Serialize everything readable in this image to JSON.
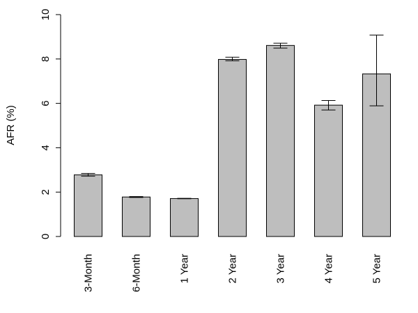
{
  "chart_data": {
    "type": "bar",
    "title": "",
    "xlabel": "",
    "ylabel": "AFR (%)",
    "ylim": [
      0,
      10
    ],
    "yticks": [
      "0",
      "2",
      "4",
      "6",
      "8",
      "10"
    ],
    "categories": [
      "3-Month",
      "6-Month",
      "1 Year",
      "2 Year",
      "3 Year",
      "4 Year",
      "5 Year"
    ],
    "values": [
      2.78,
      1.78,
      1.71,
      7.98,
      8.61,
      5.92,
      7.33
    ],
    "error_low": [
      2.72,
      1.76,
      1.7,
      7.92,
      8.49,
      5.7,
      5.89
    ],
    "error_high": [
      2.84,
      1.8,
      1.72,
      8.08,
      8.71,
      6.13,
      9.08
    ],
    "bar_color": "#bebebe",
    "grid": false,
    "legend": "none"
  }
}
